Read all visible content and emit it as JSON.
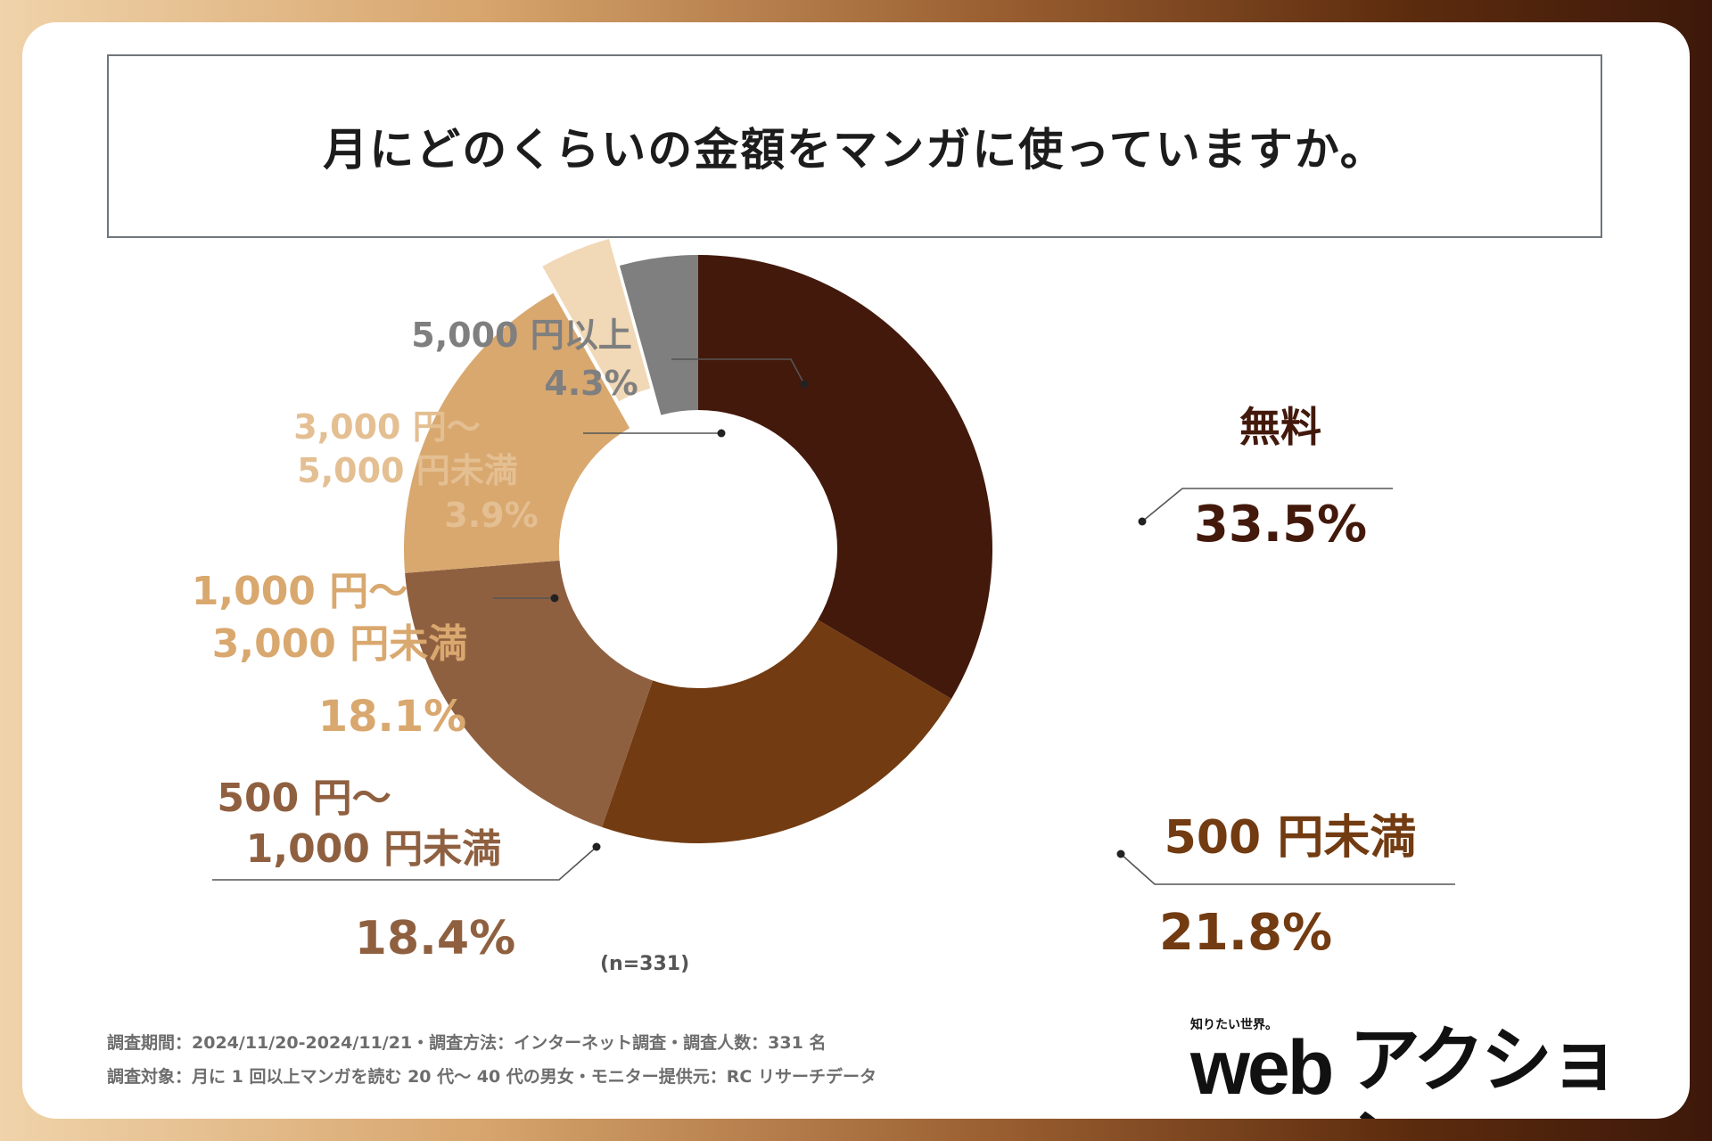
{
  "title": "月にどのくらいの金額をマンガに使っていますか。",
  "chart_data": {
    "type": "pie",
    "variant": "donut",
    "title": "月にどのくらいの金額をマンガに使っていますか。",
    "n_label": "(n=331)",
    "slices": [
      {
        "key": "free",
        "lines": [
          "無料"
        ],
        "pct_label": "33.5%",
        "value": 33.5,
        "color": "#43190c"
      },
      {
        "key": "lt500",
        "lines": [
          "500 円未満"
        ],
        "pct_label": "21.8%",
        "value": 21.8,
        "color": "#723b11"
      },
      {
        "key": "500to1000",
        "lines": [
          "500 円〜",
          "1,000 円未満"
        ],
        "pct_label": "18.4%",
        "value": 18.4,
        "color": "#8f6040"
      },
      {
        "key": "1000to3000",
        "lines": [
          "1,000 円〜",
          "3,000 円未満"
        ],
        "pct_label": "18.1%",
        "value": 18.1,
        "color": "#d9a86f"
      },
      {
        "key": "3000to5000",
        "lines": [
          "3,000 円〜",
          "5,000 円未満"
        ],
        "pct_label": "3.9%",
        "value": 3.9,
        "color": "#f1d8b6"
      },
      {
        "key": "gte5000",
        "lines": [
          "5,000 円以上"
        ],
        "pct_label": "4.3%",
        "value": 4.3,
        "color": "#7f7f7f"
      }
    ]
  },
  "footer": {
    "line1": "調査期間：2024/11/20-2024/11/21・調査方法：インターネット調査・調査人数：331 名",
    "line2": "調査対象：月に 1 回以上マンガを読む 20 代〜 40 代の男女・モニター提供元：RC リサーチデータ"
  },
  "logo": {
    "tagline": "知りたい世界。",
    "web": "web",
    "brand": "アクション"
  }
}
